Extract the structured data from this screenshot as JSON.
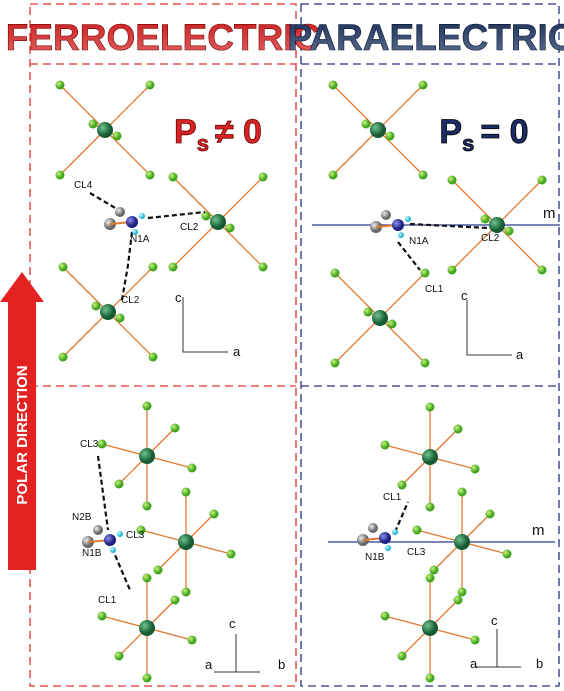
{
  "headers": [
    "FERROELECTRIC",
    "PARAELECTRIC"
  ],
  "polar_direction": "POLAR DIRECTION",
  "panels": [
    {
      "polarization": {
        "symbol": "P",
        "subscript": "s",
        "relation": "≠ 0"
      },
      "labels": [
        "CL4",
        "N1A",
        "CL2",
        "CL2"
      ],
      "axes": [
        "c",
        "a"
      ]
    },
    {
      "polarization": {
        "symbol": "P",
        "subscript": "s",
        "relation": "= 0"
      },
      "mirror": "m",
      "labels": [
        "N1A",
        "CL2",
        "CL1"
      ],
      "axes": [
        "c",
        "a"
      ]
    },
    {
      "labels": [
        "CL3",
        "N2B",
        "CL3",
        "N1B",
        "CL1"
      ],
      "axes": [
        "c",
        "a",
        "b"
      ]
    },
    {
      "mirror": "m",
      "labels": [
        "CL1",
        "N1B",
        "CL3"
      ],
      "axes": [
        "c",
        "a",
        "b"
      ]
    }
  ]
}
